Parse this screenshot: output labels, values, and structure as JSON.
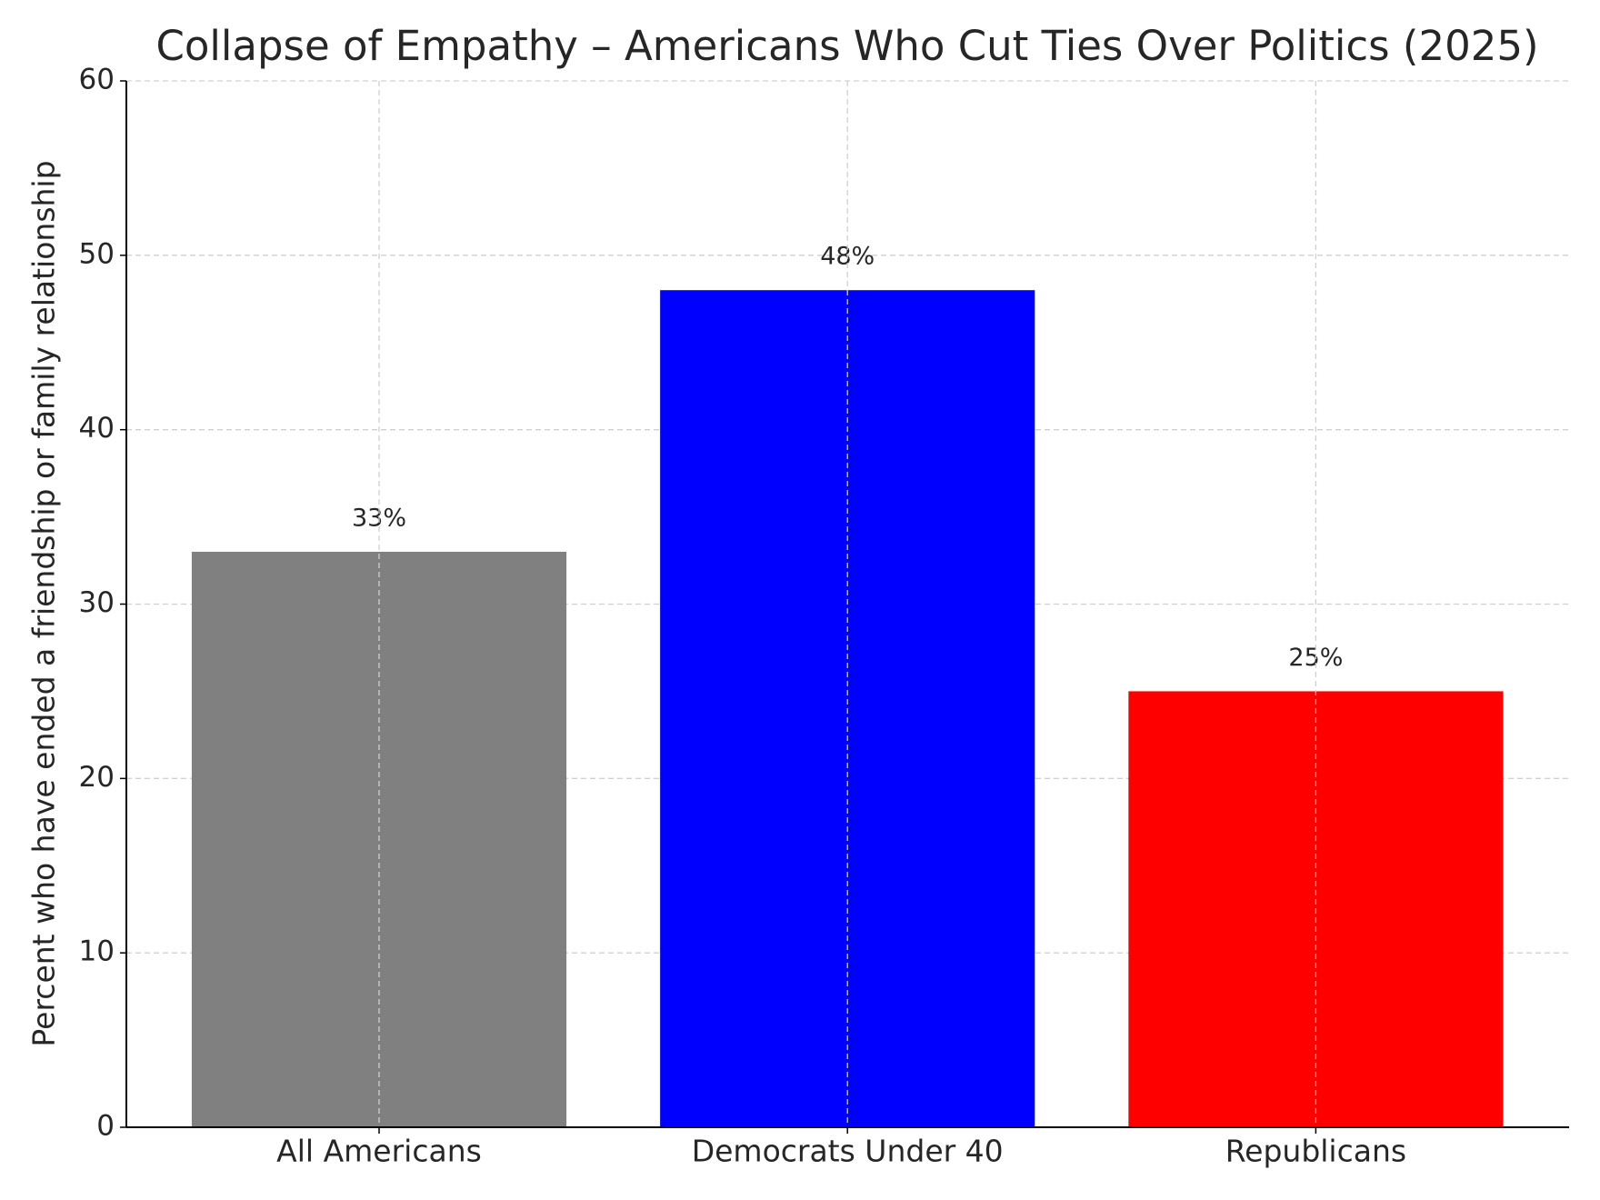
{
  "chart_data": {
    "type": "bar",
    "title": "Collapse of Empathy – Americans Who Cut Ties Over Politics (2025)",
    "y_label": "Percent who have ended a friendship or family relationship",
    "categories": [
      "All Americans",
      "Democrats Under 40",
      "Republicans"
    ],
    "values": [
      33,
      48,
      25
    ],
    "value_labels": [
      "33%",
      "48%",
      "25%"
    ],
    "colors": [
      "#808080",
      "#0000ff",
      "#ff0000"
    ],
    "ylim": [
      0,
      60
    ],
    "yticks": [
      0,
      10,
      20,
      30,
      40,
      50,
      60
    ],
    "grid": true
  }
}
